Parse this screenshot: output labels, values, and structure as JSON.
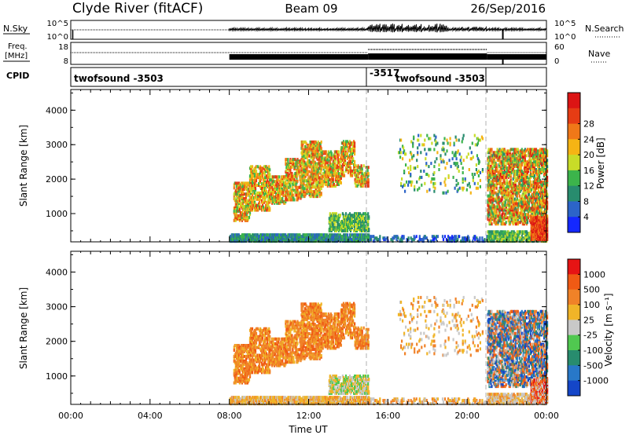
{
  "header": {
    "station": "Clyde River (fitACF)",
    "beam": "Beam 09",
    "date": "26/Sep/2016"
  },
  "top_panels": {
    "nsky_label": "N.Sky",
    "nsky_ticks": [
      "10^5",
      "10^0"
    ],
    "nsearch_label": "N.Search",
    "nsearch_ticks": [
      "10^5",
      "10^0"
    ],
    "freq_label_1": "Freq.",
    "freq_label_2": "[MHz]",
    "freq_ticks": [
      "18",
      "8"
    ],
    "nave_label": "Nave",
    "nave_ticks": [
      "60",
      "0"
    ],
    "cpid_label": "CPID",
    "cpid_segments": [
      "twofsound -3503",
      "-3517",
      "twofsound -3503"
    ]
  },
  "colors": {
    "scatter_orange": "#f07818",
    "ground_scatter": "#c0c0c0",
    "dash_line": "#b0b0b0"
  },
  "chart_data": [
    {
      "type": "heatmap",
      "name": "power",
      "ylabel": "Slant Range [km]",
      "yticks": [
        "1000",
        "2000",
        "3000",
        "4000"
      ],
      "ylim": [
        180,
        4600
      ],
      "xlim": [
        0,
        24
      ],
      "colorbar_label": "Power [dB]",
      "colorbar_ticks": [
        "4",
        "8",
        "12",
        "16",
        "20",
        "24",
        "28"
      ],
      "colorbar_colors": [
        "#1428ff",
        "#2c64c8",
        "#288c6e",
        "#3cb44b",
        "#c8dc28",
        "#f5b414",
        "#f07818",
        "#e63c14",
        "#dc1414"
      ],
      "vertical_markers_hours": [
        15.0,
        21.0
      ]
    },
    {
      "type": "heatmap",
      "name": "velocity",
      "ylabel": "Slant Range [km]",
      "yticks": [
        "1000",
        "2000",
        "3000",
        "4000"
      ],
      "ylim": [
        180,
        4600
      ],
      "xlim": [
        0,
        24
      ],
      "colorbar_label": "Velocity [m s⁻¹]",
      "colorbar_ticks": [
        "1000",
        "500",
        "100",
        "25",
        "-25",
        "-100",
        "-500",
        "-1000"
      ],
      "colorbar_colors": [
        "#1446c8",
        "#2878c8",
        "#288c6e",
        "#50c850",
        "#c8c8c8",
        "#f0b428",
        "#f08228",
        "#f05a14",
        "#e61414"
      ],
      "vertical_markers_hours": [
        15.0,
        21.0
      ]
    }
  ],
  "xaxis": {
    "label": "Time UT",
    "ticks": [
      "00:00",
      "04:00",
      "08:00",
      "12:00",
      "16:00",
      "20:00",
      "00:00"
    ]
  }
}
